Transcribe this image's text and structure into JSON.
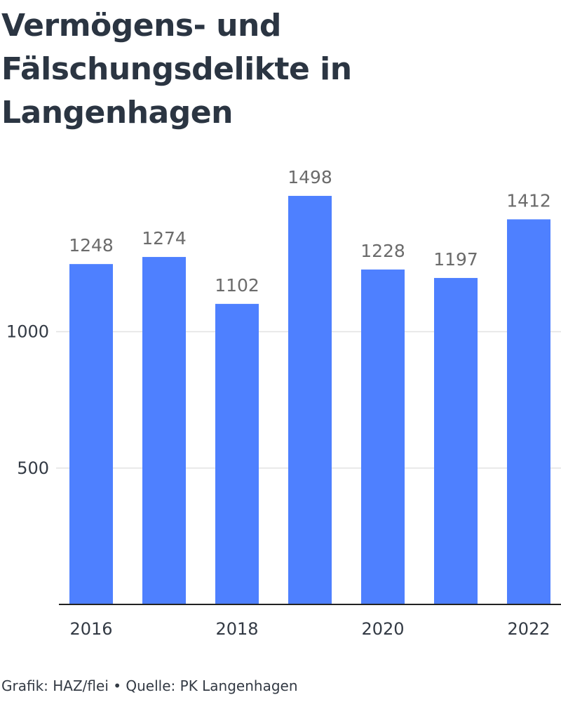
{
  "title": "Vermögens- und Fälschungsdelikte in Langenhagen",
  "footer": {
    "credit": "Grafik: HAZ/flei",
    "separator": "•",
    "source": "Quelle: PK Langenhagen"
  },
  "colors": {
    "bar": "#4e80ff",
    "title": "#2b3542",
    "label": "#6b6b6b",
    "grid": "#e2e2e2",
    "axis": "#222222"
  },
  "chart_data": {
    "type": "bar",
    "title": "Vermögens- und Fälschungsdelikte in Langenhagen",
    "xlabel": "",
    "ylabel": "",
    "categories": [
      "2016",
      "2017",
      "2018",
      "2019",
      "2020",
      "2021",
      "2022"
    ],
    "values": [
      1248,
      1274,
      1102,
      1498,
      1228,
      1197,
      1412
    ],
    "x_tick_labels": [
      "2016",
      "2018",
      "2020",
      "2022"
    ],
    "y_ticks": [
      500,
      1000
    ],
    "ylim": [
      0,
      1498
    ],
    "grid": true,
    "data_labels": true
  }
}
